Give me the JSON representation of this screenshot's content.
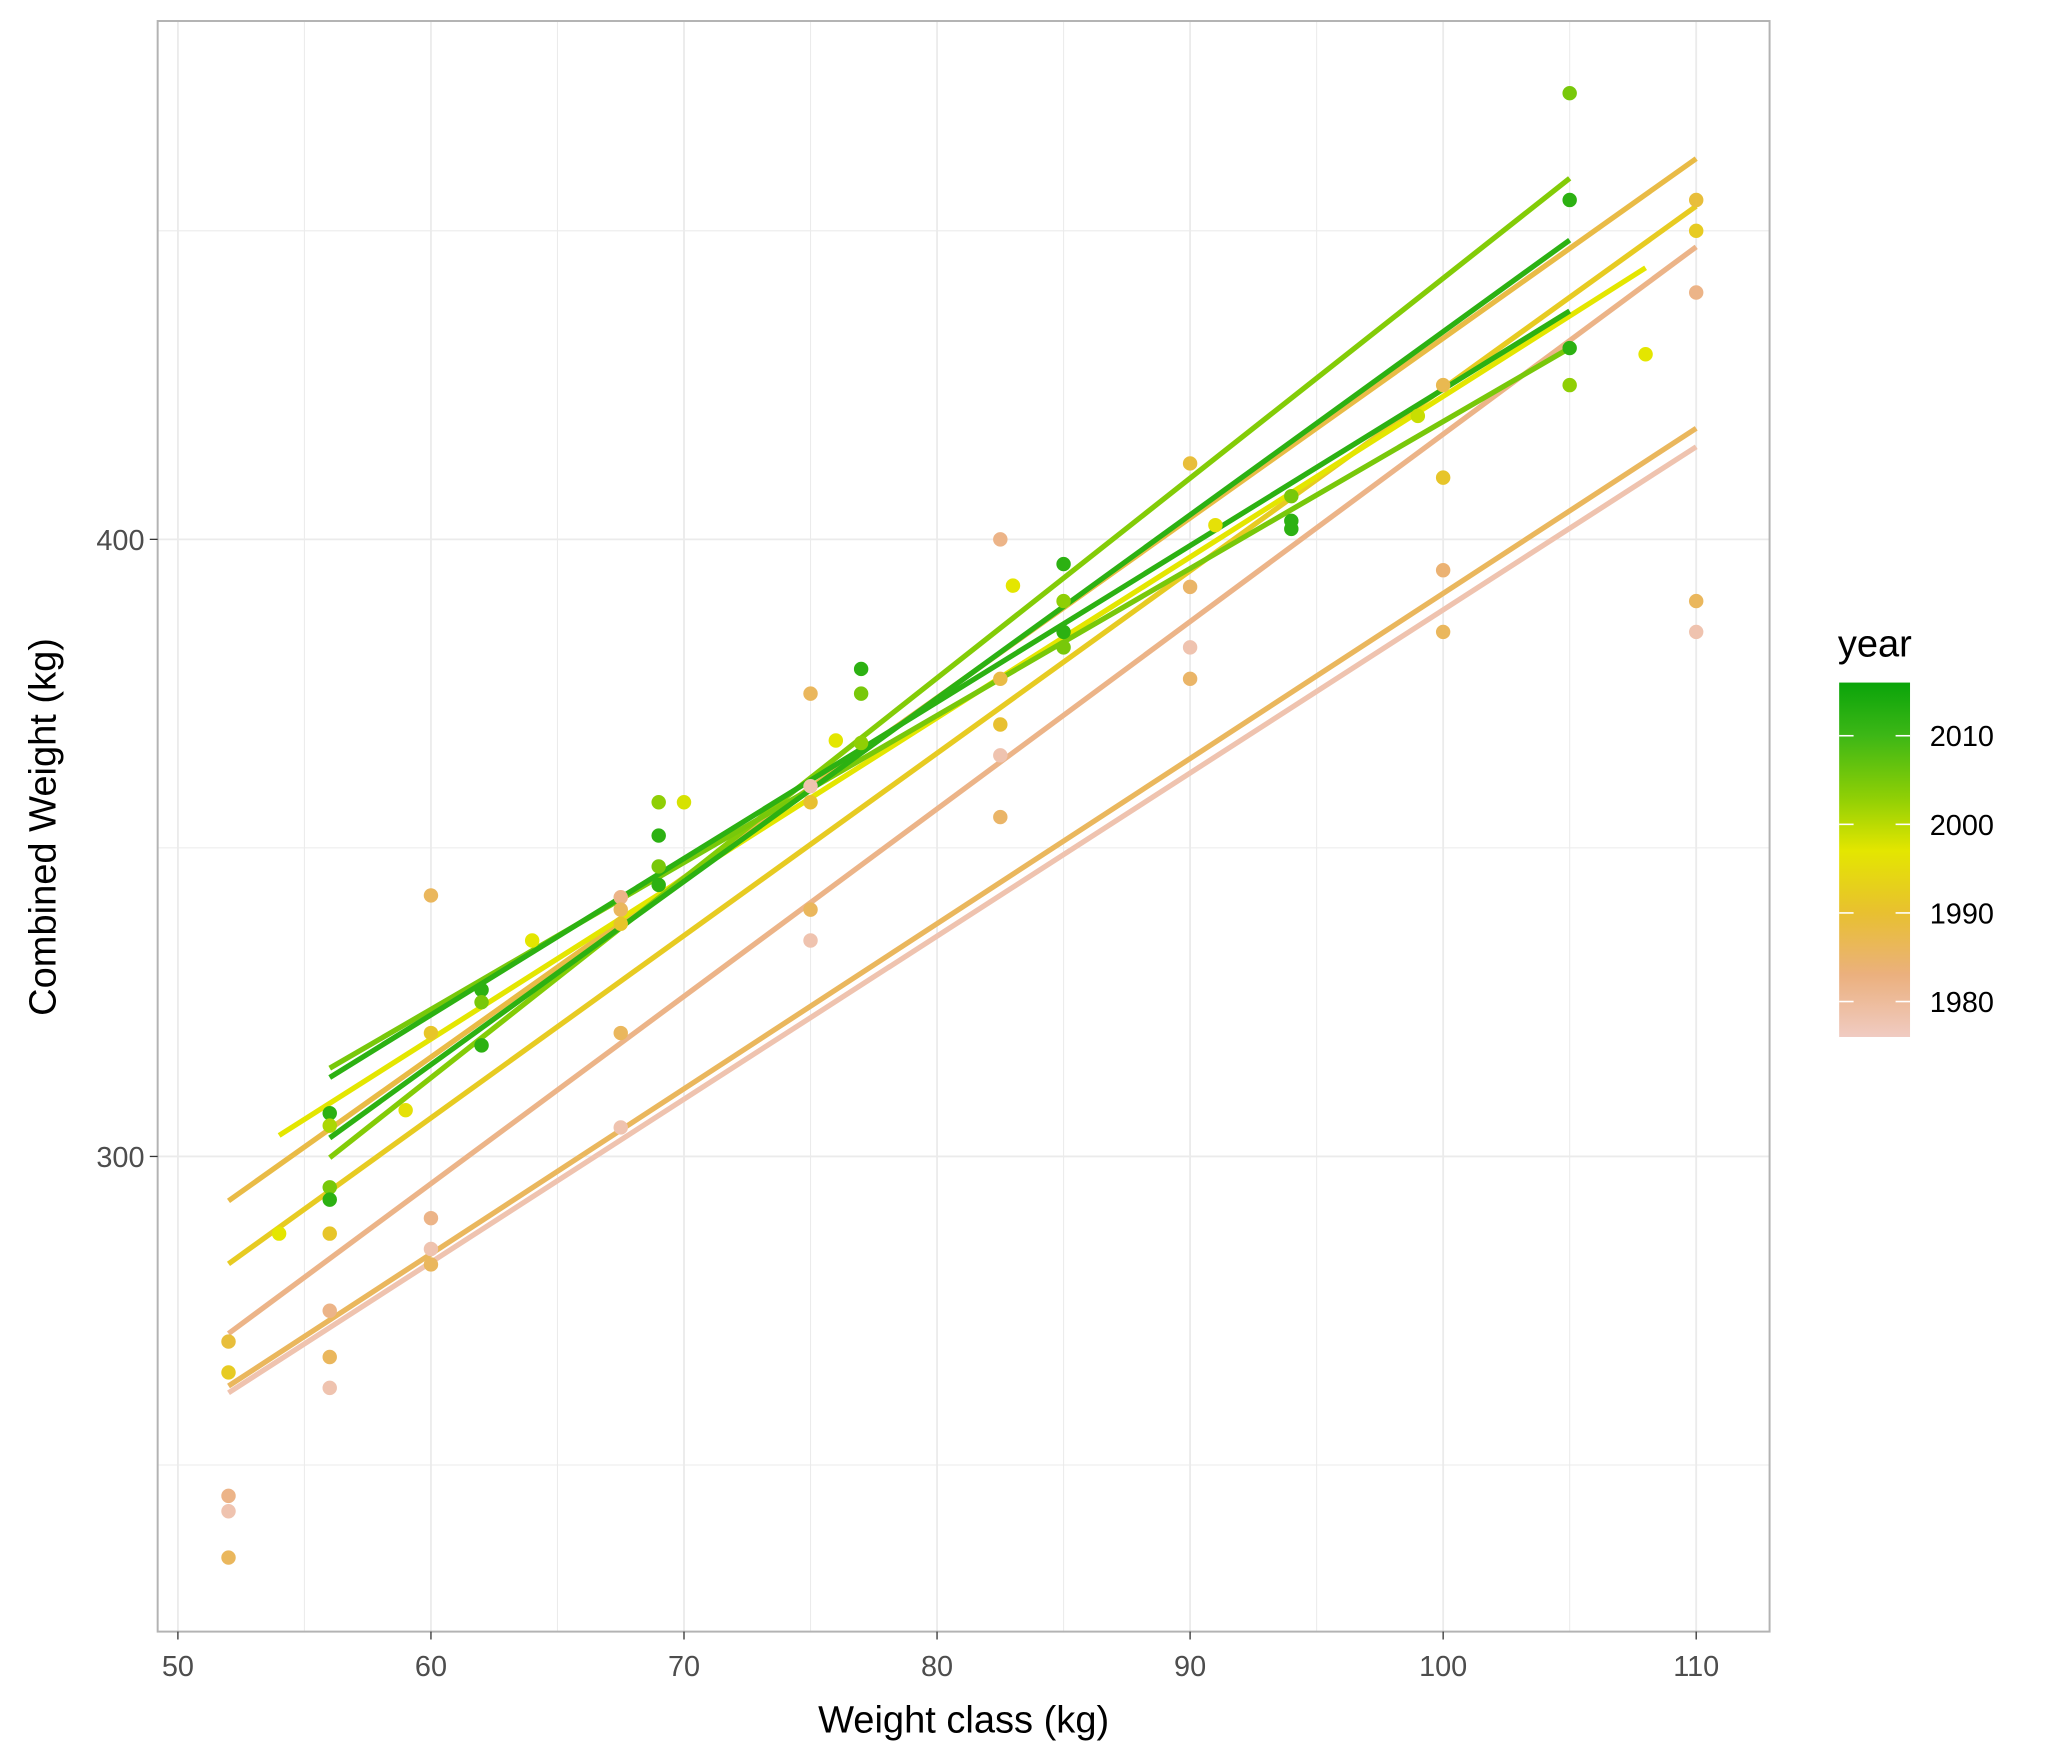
{
  "chart_data": {
    "type": "scatter",
    "xlabel": "Weight class (kg)",
    "ylabel": "Combined Weight (kg)",
    "xlim": [
      49.2,
      112.9
    ],
    "ylim": [
      223,
      484
    ],
    "x_ticks": [
      50,
      60,
      70,
      80,
      90,
      100,
      110
    ],
    "y_ticks": [
      300,
      400
    ],
    "grid": true,
    "legend": {
      "title": "year",
      "type": "colorbar",
      "position": "right",
      "range": [
        1976,
        2016
      ],
      "ticks": [
        2010,
        2000,
        1990,
        1980
      ],
      "colors": {
        "1976": "#f0cbc2",
        "1983": "#ebb07e",
        "1990": "#e8c030",
        "1997": "#e4e600",
        "2003": "#8fcf05",
        "2010": "#3db716",
        "2016": "#0aa40a"
      }
    },
    "points": [
      {
        "x": 52,
        "y": 270,
        "year": 1989
      },
      {
        "x": 52,
        "y": 265,
        "year": 1992
      },
      {
        "x": 52,
        "y": 245,
        "year": 1982
      },
      {
        "x": 52,
        "y": 242.5,
        "year": 1978
      },
      {
        "x": 52,
        "y": 235,
        "year": 1986
      },
      {
        "x": 54,
        "y": 287.5,
        "year": 1997
      },
      {
        "x": 56,
        "y": 307,
        "year": 2012
      },
      {
        "x": 56,
        "y": 305,
        "year": 2001
      },
      {
        "x": 56,
        "y": 295,
        "year": 2005
      },
      {
        "x": 56,
        "y": 293,
        "year": 2012
      },
      {
        "x": 56,
        "y": 287.5,
        "year": 1991
      },
      {
        "x": 56,
        "y": 275,
        "year": 1982
      },
      {
        "x": 56,
        "y": 267.5,
        "year": 1986
      },
      {
        "x": 56,
        "y": 262.5,
        "year": 1978
      },
      {
        "x": 59,
        "y": 307.5,
        "year": 1996
      },
      {
        "x": 60,
        "y": 342.3,
        "year": 1986
      },
      {
        "x": 60,
        "y": 320,
        "year": 1991
      },
      {
        "x": 60,
        "y": 290,
        "year": 1982
      },
      {
        "x": 60,
        "y": 285,
        "year": 1978
      },
      {
        "x": 60,
        "y": 282.5,
        "year": 1986
      },
      {
        "x": 62,
        "y": 327,
        "year": 2012
      },
      {
        "x": 62,
        "y": 325,
        "year": 2005
      },
      {
        "x": 62,
        "y": 318,
        "year": 2012
      },
      {
        "x": 64,
        "y": 335,
        "year": 1997
      },
      {
        "x": 67.5,
        "y": 342,
        "year": 1982
      },
      {
        "x": 67.5,
        "y": 340,
        "year": 1986
      },
      {
        "x": 67.5,
        "y": 337.7,
        "year": 1991
      },
      {
        "x": 67.5,
        "y": 320,
        "year": 1986
      },
      {
        "x": 67.5,
        "y": 304.7,
        "year": 1978
      },
      {
        "x": 69,
        "y": 357.4,
        "year": 2003
      },
      {
        "x": 69,
        "y": 352,
        "year": 2012
      },
      {
        "x": 69,
        "y": 347,
        "year": 2005
      },
      {
        "x": 69,
        "y": 344,
        "year": 2012
      },
      {
        "x": 70,
        "y": 357.4,
        "year": 1998
      },
      {
        "x": 75,
        "y": 375,
        "year": 1986
      },
      {
        "x": 75,
        "y": 360,
        "year": 1978
      },
      {
        "x": 75,
        "y": 357.4,
        "year": 1990
      },
      {
        "x": 75,
        "y": 340,
        "year": 1986
      },
      {
        "x": 75,
        "y": 335,
        "year": 1978
      },
      {
        "x": 76,
        "y": 367.4,
        "year": 1997
      },
      {
        "x": 77,
        "y": 379,
        "year": 2012
      },
      {
        "x": 77,
        "y": 375,
        "year": 2005
      },
      {
        "x": 77,
        "y": 367,
        "year": 2003
      },
      {
        "x": 82.5,
        "y": 400,
        "year": 1982
      },
      {
        "x": 82.5,
        "y": 377.4,
        "year": 1988
      },
      {
        "x": 82.5,
        "y": 370,
        "year": 1990
      },
      {
        "x": 82.5,
        "y": 365,
        "year": 1978
      },
      {
        "x": 82.5,
        "y": 355,
        "year": 1985
      },
      {
        "x": 83,
        "y": 392.5,
        "year": 1997
      },
      {
        "x": 85,
        "y": 396,
        "year": 2012
      },
      {
        "x": 85,
        "y": 390,
        "year": 2003
      },
      {
        "x": 85,
        "y": 385,
        "year": 2012
      },
      {
        "x": 85,
        "y": 382.5,
        "year": 2005
      },
      {
        "x": 90,
        "y": 412.3,
        "year": 1989
      },
      {
        "x": 90,
        "y": 392.3,
        "year": 1985
      },
      {
        "x": 90,
        "y": 382.5,
        "year": 1978
      },
      {
        "x": 90,
        "y": 377.4,
        "year": 1985
      },
      {
        "x": 91,
        "y": 402.3,
        "year": 1996
      },
      {
        "x": 94,
        "y": 407,
        "year": 2005
      },
      {
        "x": 94,
        "y": 403,
        "year": 2012
      },
      {
        "x": 94,
        "y": 401.7,
        "year": 2012
      },
      {
        "x": 99,
        "y": 420,
        "year": 1999
      },
      {
        "x": 100,
        "y": 425,
        "year": 1987
      },
      {
        "x": 100,
        "y": 410,
        "year": 1991
      },
      {
        "x": 100,
        "y": 395,
        "year": 1984
      },
      {
        "x": 100,
        "y": 385,
        "year": 1986
      },
      {
        "x": 105,
        "y": 472.3,
        "year": 2005
      },
      {
        "x": 105,
        "y": 455,
        "year": 2012
      },
      {
        "x": 105,
        "y": 431,
        "year": 2012
      },
      {
        "x": 105,
        "y": 425,
        "year": 2003
      },
      {
        "x": 108,
        "y": 430,
        "year": 1997
      },
      {
        "x": 110,
        "y": 455,
        "year": 1989
      },
      {
        "x": 110,
        "y": 450,
        "year": 1992
      },
      {
        "x": 110,
        "y": 440,
        "year": 1982
      },
      {
        "x": 110,
        "y": 390,
        "year": 1986
      },
      {
        "x": 110,
        "y": 385,
        "year": 1978
      }
    ],
    "fit_lines": [
      {
        "x0": 56,
        "y0": 299.8,
        "x1": 105,
        "y1": 458.5,
        "year": 2004
      },
      {
        "x0": 56,
        "y0": 303,
        "x1": 105,
        "y1": 448.5,
        "year": 2012
      },
      {
        "x0": 56,
        "y0": 312.8,
        "x1": 105,
        "y1": 437,
        "year": 2012
      },
      {
        "x0": 56,
        "y0": 314.3,
        "x1": 105,
        "y1": 431,
        "year": 2005
      },
      {
        "x0": 54,
        "y0": 303.4,
        "x1": 108,
        "y1": 444,
        "year": 1997
      },
      {
        "x0": 52,
        "y0": 292.8,
        "x1": 110,
        "y1": 461.7,
        "year": 1988
      },
      {
        "x0": 52,
        "y0": 282.6,
        "x1": 110,
        "y1": 454,
        "year": 1992
      },
      {
        "x0": 52,
        "y0": 271.3,
        "x1": 110,
        "y1": 447.4,
        "year": 1982
      },
      {
        "x0": 52,
        "y0": 262.8,
        "x1": 110,
        "y1": 418,
        "year": 1986
      },
      {
        "x0": 52,
        "y0": 261.7,
        "x1": 110,
        "y1": 415,
        "year": 1978
      }
    ]
  }
}
